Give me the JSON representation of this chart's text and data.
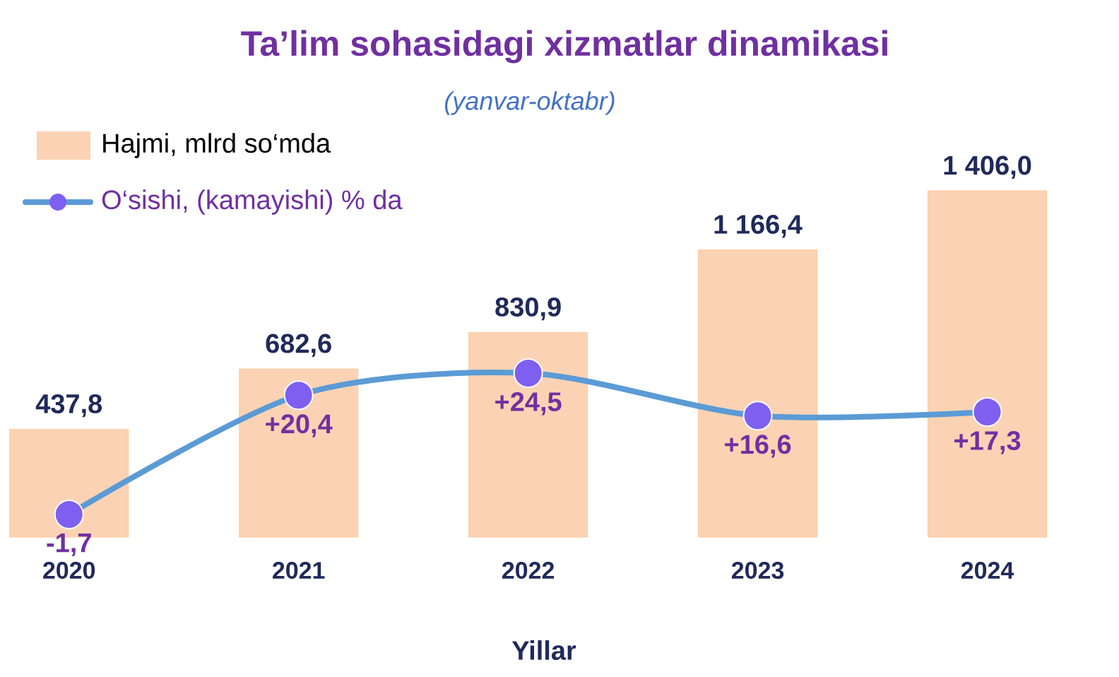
{
  "chart_data": {
    "type": "bar",
    "title": "Ta’lim sohasidagi xizmatlar dinamikasi",
    "subtitle": "(yanvar-oktabr)",
    "xlabel": "Yillar",
    "categories": [
      "2020",
      "2021",
      "2022",
      "2023",
      "2024"
    ],
    "series": [
      {
        "name": "Hajmi, mlrd so‘mda",
        "color": "#fbd3b4",
        "values": [
          437.8,
          682.6,
          830.9,
          1166.4,
          1406.0
        ],
        "value_labels": [
          "437,8",
          "682,6",
          "830,9",
          "1 166,4",
          "1 406,0"
        ]
      },
      {
        "name": "O‘sishi, (kamayishi) % da",
        "type": "line",
        "axis": "y2",
        "color": "#5b9bd5",
        "colors": [
          "#7f5ff0",
          "#7f5ff0",
          "#7f5ff0",
          "#7f5ff0",
          "#7f5ff0"
        ],
        "marker": "circle",
        "values": [
          -1.7,
          20.4,
          24.5,
          16.6,
          17.3
        ],
        "value_labels": [
          "-1,7",
          "+20,4",
          "+24,5",
          "+16,6",
          "+17,3"
        ]
      }
    ],
    "tick_labels": "x",
    "legend": "top left"
  }
}
